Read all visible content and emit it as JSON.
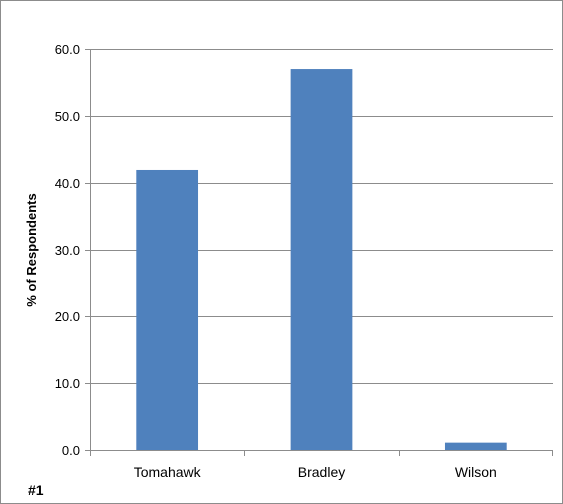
{
  "chart_data": {
    "type": "bar",
    "categories": [
      "Tomahawk",
      "Bradley",
      "Wilson"
    ],
    "values": [
      41.9,
      57.0,
      1.1
    ],
    "ylabel": "% of Respondents",
    "xlabel": "",
    "ylim": [
      0,
      60
    ],
    "yticks": [
      "0.0",
      "10.0",
      "20.0",
      "30.0",
      "40.0",
      "50.0",
      "60.0"
    ],
    "grid": true,
    "legend": "none",
    "bar_color": "#4F81BD",
    "corner_label": "#1"
  }
}
